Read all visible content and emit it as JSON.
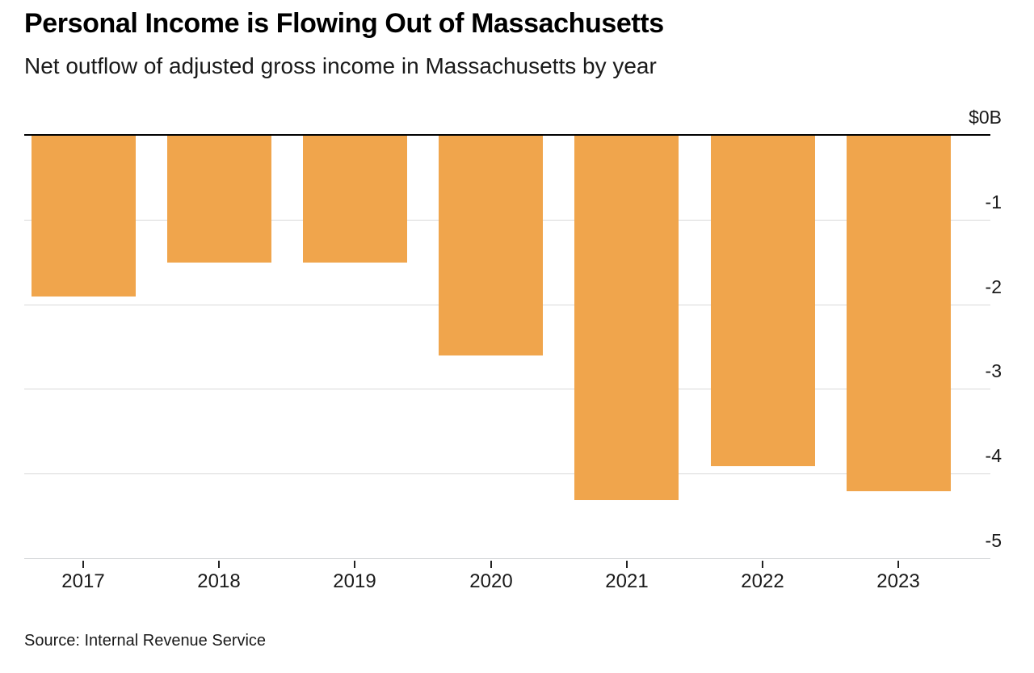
{
  "header": {
    "title": "Personal Income is Flowing Out of Massachusetts",
    "subtitle": "Net outflow of adjusted gross income in Massachusetts by year"
  },
  "chart_data": {
    "type": "bar",
    "title": "Personal Income is Flowing Out of Massachusetts",
    "subtitle": "Net outflow of adjusted gross income in Massachusetts by year",
    "categories": [
      "2017",
      "2018",
      "2019",
      "2020",
      "2021",
      "2022",
      "2023"
    ],
    "values": [
      -1.9,
      -1.5,
      -1.5,
      -2.6,
      -4.3,
      -3.9,
      -4.2
    ],
    "unit": "billions of dollars",
    "ylim": [
      -5,
      0
    ],
    "y_ticks": [
      {
        "value": 0,
        "label": "$0B"
      },
      {
        "value": -1,
        "label": "-1"
      },
      {
        "value": -2,
        "label": "-2"
      },
      {
        "value": -3,
        "label": "-3"
      },
      {
        "value": -4,
        "label": "-4"
      },
      {
        "value": -5,
        "label": "-5"
      }
    ],
    "bar_color": "#f0a54c",
    "grid_color": "#d9d9d9",
    "zero_line_color": "#000000",
    "gridlines": "horizontal",
    "legend": "none",
    "y_axis_side": "right"
  },
  "footer": {
    "source": "Source: Internal Revenue Service"
  }
}
